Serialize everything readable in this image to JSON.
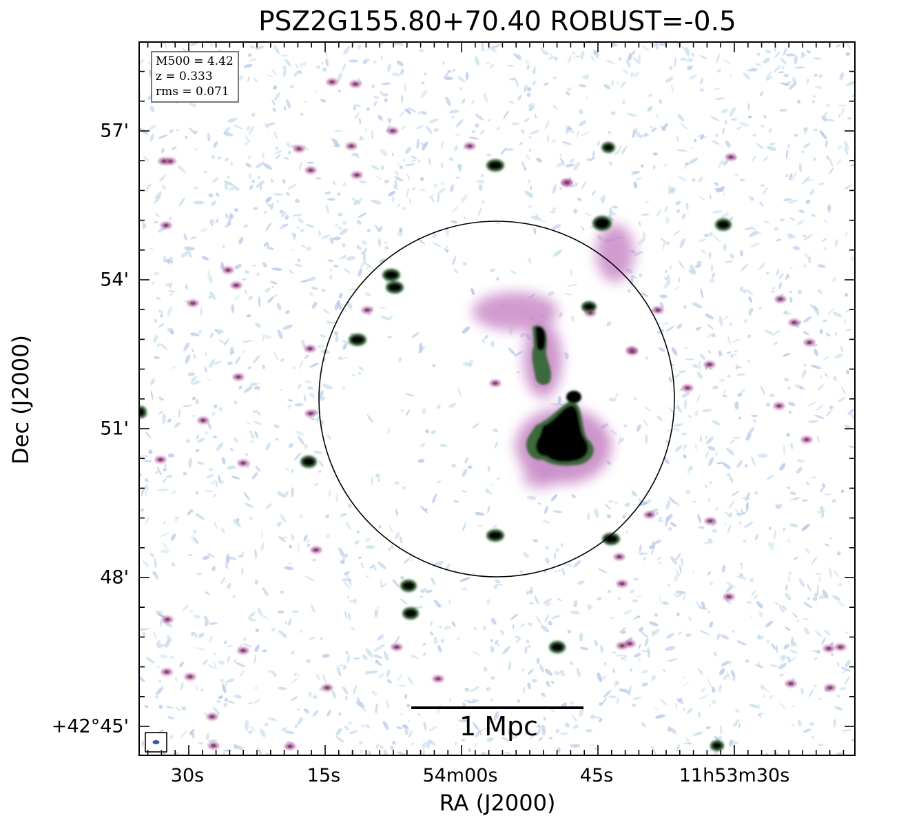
{
  "title": "PSZ2G155.80+70.40 ROBUST=-0.5",
  "xlabel": "RA (J2000)",
  "ylabel": "Dec (J2000)",
  "xticks": [
    "30s",
    "15s",
    "54m00s",
    "45s",
    "11h53m30s"
  ],
  "yticks": [
    "57'",
    "54'",
    "51'",
    "48'",
    "+42°45'"
  ],
  "info": {
    "m500": "M500 = 4.42",
    "z": "z = 0.333",
    "rms": "rms = 0.071"
  },
  "scalebar_label": "1 Mpc",
  "colors": {
    "noise_light": "#b8cbee",
    "noise_cyan": "#bfe0e8",
    "emission_pink": "#c98ac7",
    "emission_magenta": "#b05a9a",
    "core_green": "#3b6b3a",
    "core_black": "#000000",
    "beam": "#2a5aa8"
  }
}
